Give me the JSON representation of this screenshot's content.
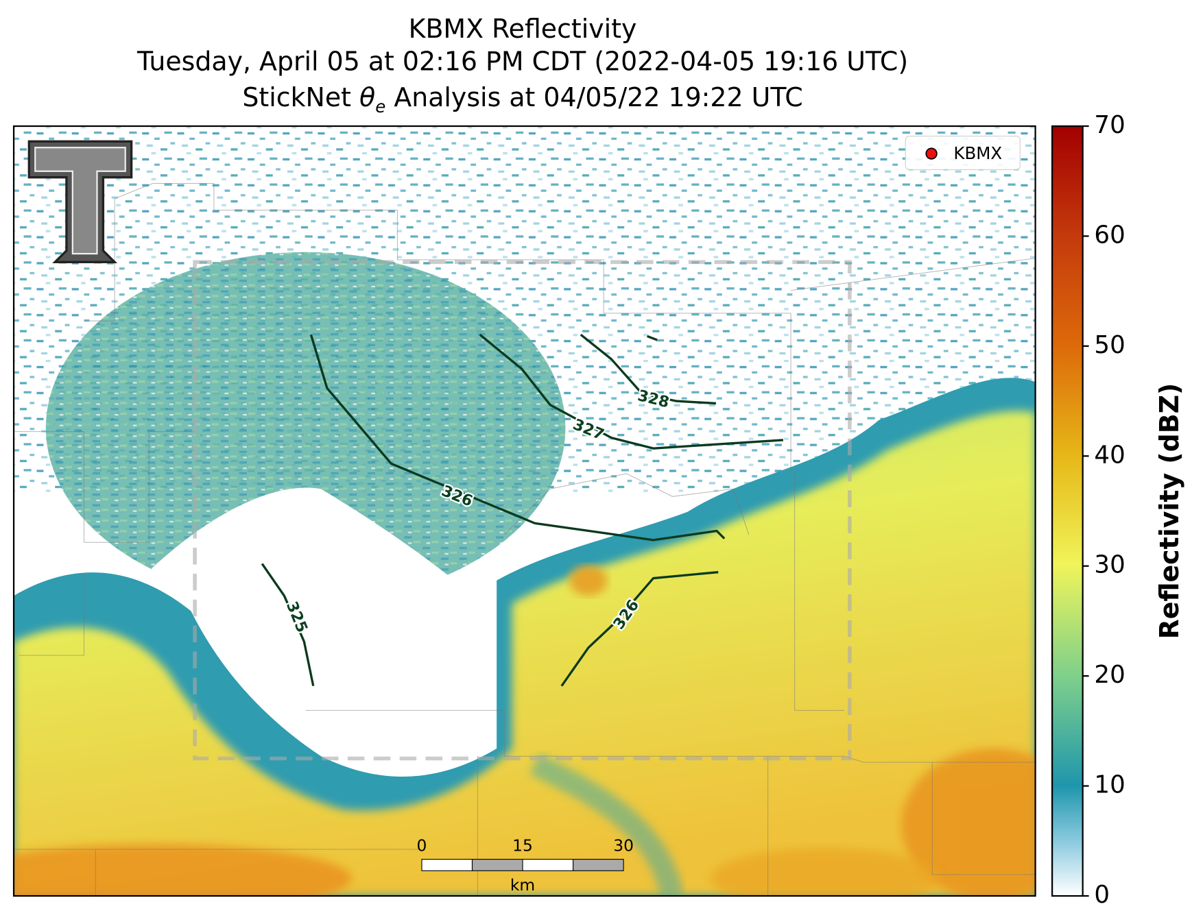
{
  "header": {
    "title": "KBMX Reflectivity",
    "subtitle": "Tuesday, April 05 at 02:16 PM CDT (2022-04-05 19:16 UTC)",
    "analysis": {
      "before": "StickNet ",
      "symbol": "θ",
      "subscript": "e",
      "after": " Analysis at 04/05/22 19:22 UTC"
    }
  },
  "legend": {
    "label": "KBMX"
  },
  "colorbar": {
    "label": "Reflectivity (dBZ)",
    "lim": [
      0,
      70
    ],
    "ticks": [
      0,
      10,
      20,
      30,
      40,
      50,
      60,
      70
    ]
  },
  "contours": [
    {
      "label": 325
    },
    {
      "label": 326
    },
    {
      "label": 327
    },
    {
      "label": 328
    },
    {
      "label": 326
    }
  ],
  "scalebar": {
    "ticks": [
      0,
      15,
      30
    ],
    "unit": "km"
  }
}
